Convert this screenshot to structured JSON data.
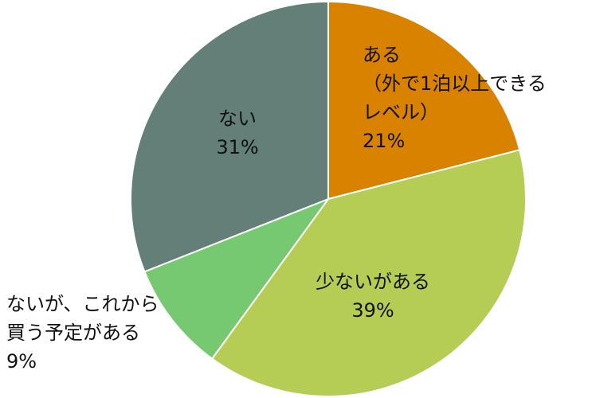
{
  "chart_data": {
    "type": "pie",
    "categories": [
      "ある\n（外で1泊以上できる\nレベル）",
      "少ないがある",
      "ないが、これから\n買う予定がある",
      "ない"
    ],
    "values": [
      21,
      39,
      9,
      31
    ],
    "value_labels": [
      "21%",
      "39%",
      "9%",
      "31%"
    ],
    "colors": [
      "#d98200",
      "#b5cc55",
      "#77c971",
      "#647e78"
    ]
  }
}
